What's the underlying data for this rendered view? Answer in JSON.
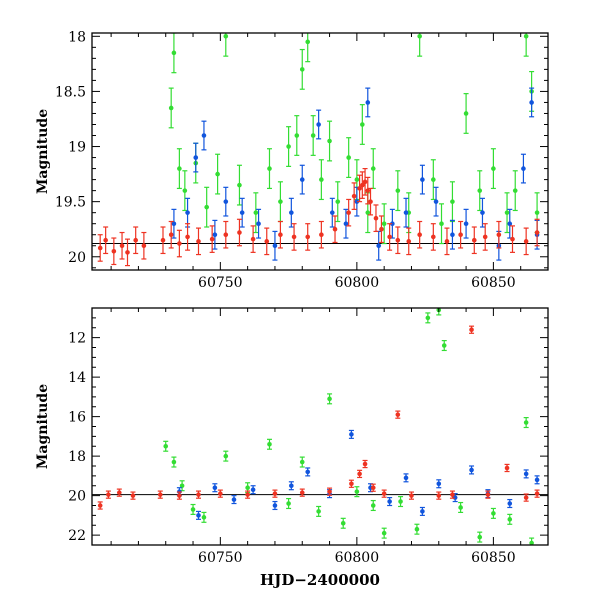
{
  "colors": {
    "green": "#33dd33",
    "blue": "#1155dd",
    "red": "#ee3322",
    "axis": "#000000"
  },
  "chart_data": [
    {
      "type": "scatter",
      "panel": "top",
      "xlabel": "",
      "ylabel": "Magnitude",
      "xlim": [
        60703,
        60870
      ],
      "ylim": [
        20.12,
        17.97
      ],
      "xticks": [
        60750,
        60800,
        60850
      ],
      "yticks": [
        18,
        18.5,
        19,
        19.5,
        20
      ],
      "ytick_labels": [
        "18",
        "18.5",
        "19",
        "19.5",
        "20"
      ],
      "reference_line": 19.88,
      "series": [
        {
          "color": "green",
          "error": 0.18,
          "x": [
            60732,
            60733,
            60735,
            60737,
            60741,
            60745,
            60749,
            60752,
            60757,
            60763,
            60768,
            60772,
            60775,
            60778,
            60780,
            60782,
            60784,
            60787,
            60790,
            60793,
            60797,
            60800,
            60802,
            60804,
            60806,
            60810,
            60815,
            60819,
            60823,
            60828,
            60831,
            60835,
            60840,
            60845,
            60850,
            60855,
            60858,
            60862,
            60864,
            60866
          ],
          "y": [
            18.65,
            18.15,
            19.2,
            19.4,
            19.15,
            19.55,
            19.25,
            18.0,
            19.35,
            19.6,
            19.2,
            19.5,
            19.0,
            18.9,
            18.3,
            18.05,
            18.9,
            19.3,
            18.95,
            19.5,
            19.1,
            19.3,
            18.8,
            19.6,
            19.2,
            19.7,
            19.4,
            19.6,
            18.0,
            19.3,
            19.7,
            19.5,
            18.7,
            19.4,
            19.2,
            19.6,
            19.4,
            18.0,
            18.5,
            19.6
          ]
        },
        {
          "color": "blue",
          "error": 0.13,
          "x": [
            60733,
            60738,
            60741,
            60744,
            60748,
            60752,
            60758,
            60764,
            60770,
            60776,
            60780,
            60786,
            60791,
            60796,
            60800,
            60804,
            60808,
            60813,
            60818,
            60824,
            60829,
            60835,
            60840,
            60846,
            60852,
            60856,
            60861,
            60864,
            60866
          ],
          "y": [
            19.7,
            19.6,
            19.1,
            18.9,
            19.8,
            19.5,
            19.6,
            19.7,
            19.9,
            19.6,
            19.3,
            18.8,
            19.6,
            19.7,
            19.5,
            18.6,
            19.9,
            19.7,
            19.6,
            19.3,
            19.5,
            19.8,
            19.7,
            19.6,
            19.9,
            19.7,
            19.2,
            18.6,
            19.8
          ]
        },
        {
          "color": "red",
          "error": 0.12,
          "x": [
            60706,
            60708,
            60711,
            60714,
            60716,
            60719,
            60722,
            60729,
            60732,
            60735,
            60738,
            60742,
            60747,
            60752,
            60757,
            60762,
            60767,
            60772,
            60777,
            60782,
            60787,
            60792,
            60797,
            60799,
            60801,
            60802,
            60803,
            60804,
            60805,
            60807,
            60809,
            60812,
            60815,
            60819,
            60823,
            60828,
            60833,
            60838,
            60843,
            60847,
            60852,
            60857,
            60862,
            60866
          ],
          "y": [
            19.92,
            19.85,
            19.95,
            19.9,
            19.96,
            19.85,
            19.9,
            19.85,
            19.8,
            19.88,
            19.82,
            19.86,
            19.84,
            19.8,
            19.78,
            19.84,
            19.86,
            19.8,
            19.82,
            19.82,
            19.8,
            19.75,
            19.6,
            19.45,
            19.38,
            19.35,
            19.32,
            19.4,
            19.5,
            19.65,
            19.75,
            19.82,
            19.85,
            19.86,
            19.8,
            19.82,
            19.86,
            19.8,
            19.85,
            19.82,
            19.8,
            19.84,
            19.86,
            19.78
          ]
        }
      ]
    },
    {
      "type": "scatter",
      "panel": "bottom",
      "xlabel": "HJD−2400000",
      "ylabel": "Magnitude",
      "xlim": [
        60703,
        60870
      ],
      "ylim": [
        22.5,
        10.5
      ],
      "xticks": [
        60750,
        60800,
        60850
      ],
      "yticks": [
        12,
        14,
        16,
        18,
        20,
        22
      ],
      "ytick_labels": [
        "12",
        "14",
        "16",
        "18",
        "20",
        "22"
      ],
      "reference_line": 19.95,
      "series": [
        {
          "color": "green",
          "error": 0.25,
          "x": [
            60730,
            60733,
            60736,
            60740,
            60744,
            60752,
            60760,
            60768,
            60775,
            60780,
            60786,
            60790,
            60795,
            60800,
            60806,
            60810,
            60816,
            60822,
            60826,
            60830,
            60832,
            60838,
            60845,
            60850,
            60856,
            60862,
            60864
          ],
          "y": [
            17.5,
            18.3,
            19.5,
            20.7,
            21.1,
            18.0,
            19.6,
            17.4,
            20.4,
            18.3,
            20.8,
            15.1,
            21.4,
            19.8,
            20.5,
            21.9,
            20.3,
            21.7,
            11.0,
            10.6,
            12.4,
            20.6,
            22.1,
            20.9,
            21.2,
            16.3,
            22.4
          ]
        },
        {
          "color": "blue",
          "error": 0.2,
          "x": [
            60735,
            60742,
            60748,
            60755,
            60762,
            60770,
            60776,
            60782,
            60790,
            60798,
            60805,
            60812,
            60818,
            60824,
            60830,
            60836,
            60842,
            60848,
            60856,
            60862,
            60866
          ],
          "y": [
            19.8,
            21.0,
            19.6,
            20.2,
            19.7,
            20.5,
            19.5,
            18.8,
            19.9,
            16.9,
            19.6,
            20.3,
            19.1,
            20.8,
            19.4,
            20.1,
            18.7,
            19.9,
            20.4,
            18.9,
            19.2
          ]
        },
        {
          "color": "red",
          "error": 0.18,
          "x": [
            60706,
            60709,
            60713,
            60718,
            60728,
            60735,
            60742,
            60750,
            60760,
            60770,
            60780,
            60790,
            60798,
            60801,
            60803,
            60806,
            60810,
            60815,
            60820,
            60830,
            60835,
            60842,
            60848,
            60855,
            60862,
            60866
          ],
          "y": [
            20.5,
            19.95,
            19.85,
            20.0,
            19.95,
            20.0,
            19.95,
            19.9,
            19.95,
            19.9,
            19.85,
            19.8,
            19.4,
            18.9,
            18.4,
            19.6,
            19.9,
            15.9,
            20.0,
            20.0,
            19.95,
            11.6,
            19.95,
            18.6,
            20.1,
            19.9
          ]
        }
      ]
    }
  ]
}
